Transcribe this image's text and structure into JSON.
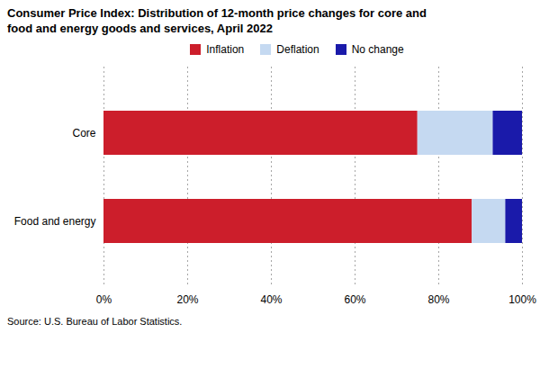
{
  "chart_data": {
    "type": "bar",
    "title": "Consumer Price Index: Distribution of 12-month price changes for core and\nfood and energy goods and services, April 2022",
    "orientation": "horizontal",
    "stacked": true,
    "categories": [
      "Food and energy",
      "Core"
    ],
    "series": [
      {
        "name": "Inflation",
        "color": "#cc1e2b",
        "values": [
          88,
          75
        ]
      },
      {
        "name": "Deflation",
        "color": "#c5d9f1",
        "values": [
          8,
          18
        ]
      },
      {
        "name": "No change",
        "color": "#1a1aaa",
        "values": [
          4,
          7
        ]
      }
    ],
    "xlim": [
      0,
      100
    ],
    "xticks": [
      {
        "value": 0,
        "label": "0%"
      },
      {
        "value": 20,
        "label": "20%"
      },
      {
        "value": 40,
        "label": "40%"
      },
      {
        "value": 60,
        "label": "60%"
      },
      {
        "value": 80,
        "label": "80%"
      },
      {
        "value": 100,
        "label": "100%"
      }
    ],
    "grid": true,
    "legend": "top",
    "annotations": [
      "Source: U.S. Bureau of Labor Statistics."
    ]
  }
}
